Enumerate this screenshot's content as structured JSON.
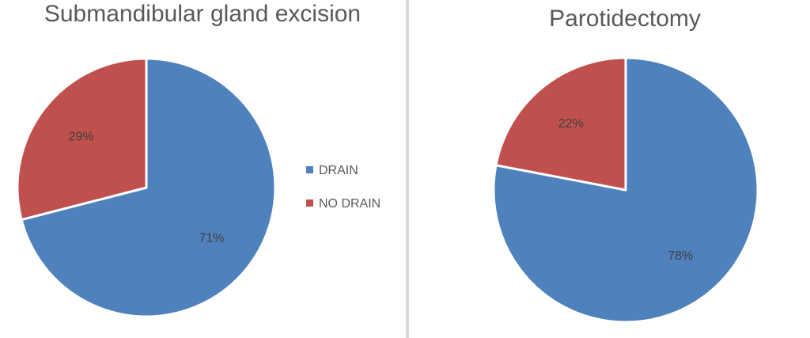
{
  "chart_data": [
    {
      "type": "pie",
      "title": "Submandibular gland excision",
      "slices": [
        {
          "label": "DRAIN",
          "value": 71,
          "display": "71%",
          "color": "#4f81bd"
        },
        {
          "label": "NO DRAIN",
          "value": 29,
          "display": "29%",
          "color": "#c0504d"
        }
      ],
      "legend": {
        "placement": "right",
        "entries": [
          {
            "label": "DRAIN",
            "color": "#4f81bd"
          },
          {
            "label": "NO DRAIN",
            "color": "#c0504d"
          }
        ]
      }
    },
    {
      "type": "pie",
      "title": "Parotidectomy",
      "slices": [
        {
          "label": "DRAIN",
          "value": 78,
          "display": "78%",
          "color": "#4f81bd"
        },
        {
          "label": "NO DRAIN",
          "value": 22,
          "display": "22%",
          "color": "#c0504d"
        }
      ]
    }
  ]
}
